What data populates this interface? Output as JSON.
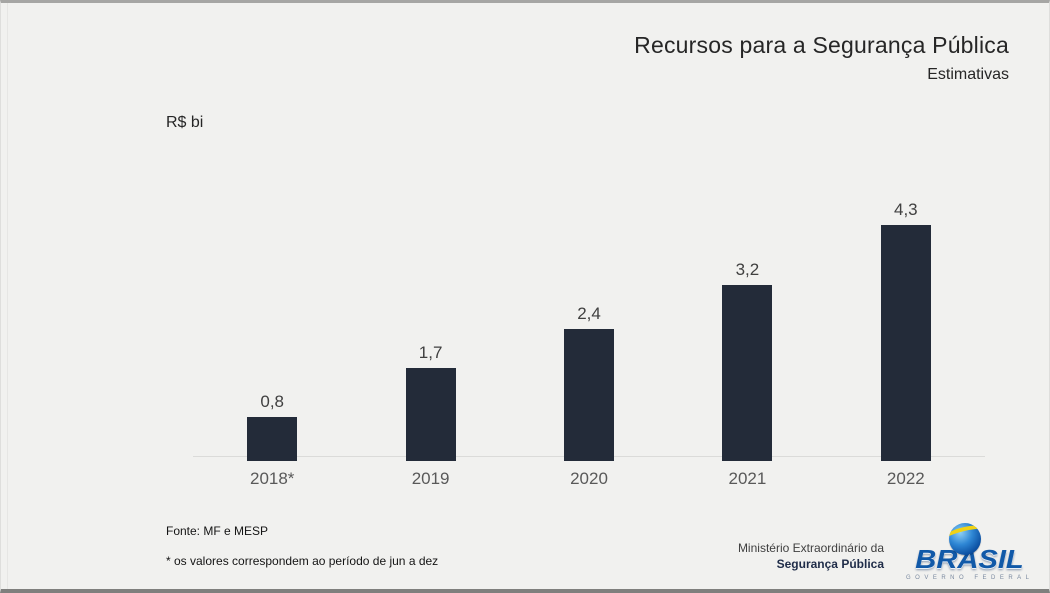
{
  "header": {
    "title": "Recursos para a Segurança Pública",
    "subtitle": "Estimativas"
  },
  "chart_data": {
    "type": "bar",
    "title": "Recursos para a Segurança Pública",
    "subtitle": "Estimativas",
    "ylabel": "R$ bi",
    "xlabel": "",
    "categories": [
      "2018*",
      "2019",
      "2020",
      "2021",
      "2022"
    ],
    "values": [
      0.8,
      1.7,
      2.4,
      3.2,
      4.3
    ],
    "value_labels": [
      "0,8",
      "1,7",
      "2,4",
      "3,2",
      "4,3"
    ],
    "ylim": [
      0,
      4.5
    ],
    "grid": false,
    "legend": false,
    "bar_color": "#232b39"
  },
  "footer": {
    "source": "Fonte: MF e MESP",
    "note": "* os valores correspondem ao período de jun a dez",
    "ministry_line1": "Ministério Extraordinário da",
    "ministry_line2": "Segurança Pública"
  },
  "logo": {
    "brand": "BRASIL",
    "tagline": "GOVERNO FEDERAL"
  },
  "colors": {
    "background": "#f1f1ef",
    "bar": "#232b39",
    "value_label": "#404040",
    "category_label": "#595959",
    "title_text": "#262626",
    "axis_line": "#dbdbd9",
    "logo_blue": "#1159a8",
    "logo_yellow": "#f0d214"
  }
}
